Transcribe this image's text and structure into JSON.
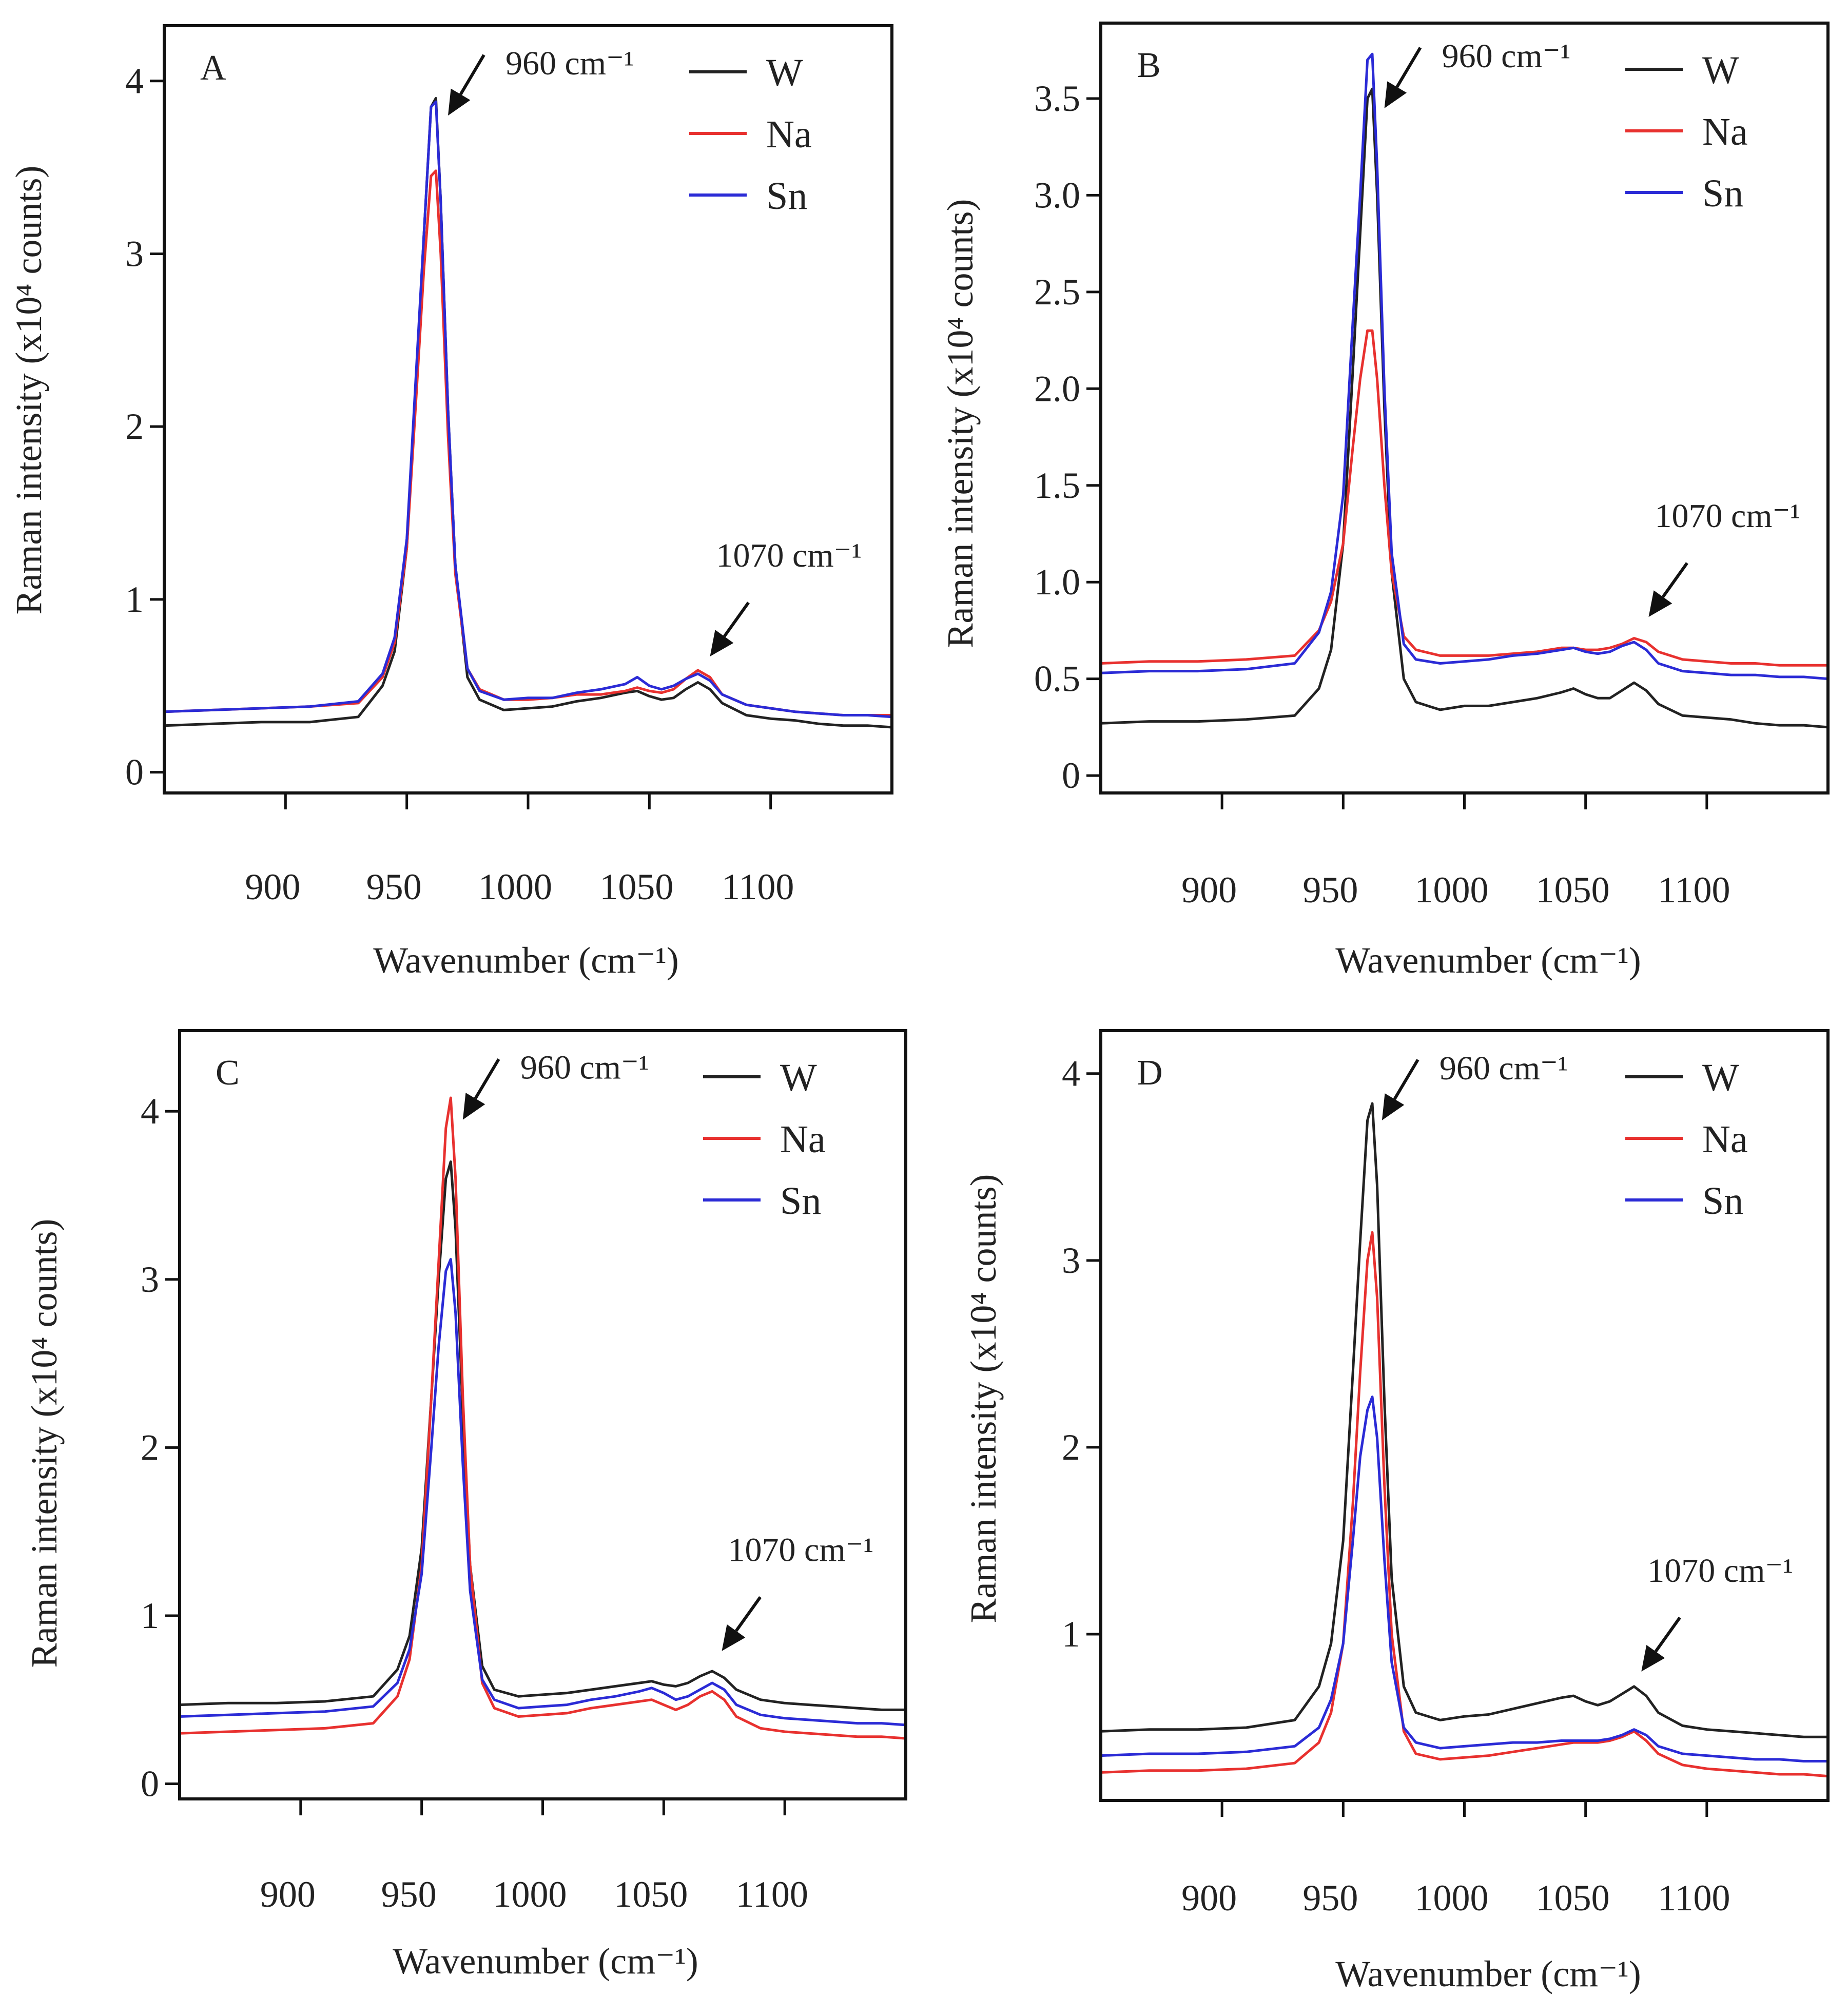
{
  "chart_data": [
    {
      "type": "line",
      "panel": "A",
      "xlabel": "Wavenumber (cm⁻¹)",
      "ylabel": "Raman intensity (x10⁴ counts)",
      "xlim": [
        850,
        1150
      ],
      "ylim": [
        -0.12,
        4.32
      ],
      "xticks": [
        900,
        950,
        1000,
        1050,
        1100
      ],
      "yticks": [
        0,
        1,
        2,
        3,
        4
      ],
      "ytick_labels": [
        "0",
        "1",
        "2",
        "3",
        "4"
      ],
      "grid": false,
      "legend": "top-right",
      "x": [
        850,
        870,
        890,
        910,
        930,
        940,
        945,
        950,
        954,
        957,
        960,
        962,
        964,
        967,
        970,
        975,
        980,
        990,
        1000,
        1010,
        1020,
        1030,
        1040,
        1045,
        1050,
        1055,
        1060,
        1065,
        1070,
        1075,
        1080,
        1090,
        1100,
        1110,
        1120,
        1130,
        1140,
        1150
      ],
      "series": [
        {
          "name": "W",
          "color": "#222222",
          "values": [
            0.27,
            0.28,
            0.29,
            0.29,
            0.32,
            0.5,
            0.7,
            1.3,
            2.3,
            3.1,
            3.85,
            3.9,
            3.3,
            2.1,
            1.2,
            0.55,
            0.42,
            0.36,
            0.37,
            0.38,
            0.41,
            0.43,
            0.46,
            0.47,
            0.44,
            0.42,
            0.43,
            0.48,
            0.52,
            0.48,
            0.4,
            0.33,
            0.31,
            0.3,
            0.28,
            0.27,
            0.27,
            0.26
          ]
        },
        {
          "name": "Na",
          "color": "#e8312f",
          "values": [
            0.35,
            0.36,
            0.37,
            0.38,
            0.4,
            0.55,
            0.75,
            1.3,
            2.2,
            2.9,
            3.45,
            3.48,
            3.0,
            1.95,
            1.15,
            0.6,
            0.48,
            0.42,
            0.42,
            0.43,
            0.45,
            0.45,
            0.47,
            0.49,
            0.47,
            0.46,
            0.48,
            0.54,
            0.59,
            0.55,
            0.45,
            0.39,
            0.37,
            0.35,
            0.34,
            0.33,
            0.33,
            0.33
          ]
        },
        {
          "name": "Sn",
          "color": "#2b2bd6",
          "values": [
            0.35,
            0.36,
            0.37,
            0.38,
            0.41,
            0.57,
            0.78,
            1.35,
            2.35,
            3.1,
            3.85,
            3.88,
            3.3,
            2.1,
            1.2,
            0.6,
            0.47,
            0.42,
            0.43,
            0.43,
            0.46,
            0.48,
            0.51,
            0.55,
            0.5,
            0.48,
            0.5,
            0.54,
            0.57,
            0.53,
            0.45,
            0.39,
            0.37,
            0.35,
            0.34,
            0.33,
            0.33,
            0.32
          ]
        }
      ],
      "annotations": [
        {
          "text": "960 cm⁻¹",
          "x": 967,
          "y": 3.8,
          "style": "right"
        },
        {
          "text": "1070 cm⁻¹",
          "x": 1075,
          "y": 0.67,
          "style": "above"
        }
      ]
    },
    {
      "type": "line",
      "panel": "B",
      "xlabel": "Wavenumber (cm⁻¹)",
      "ylabel": "Raman intensity (x10⁴ counts)",
      "xlim": [
        850,
        1150
      ],
      "ylim": [
        -0.09,
        3.89
      ],
      "xticks": [
        900,
        950,
        1000,
        1050,
        1100
      ],
      "yticks": [
        0,
        0.5,
        1.0,
        1.5,
        2.0,
        2.5,
        3.0,
        3.5
      ],
      "ytick_labels": [
        "0",
        "0.5",
        "1.0",
        "1.5",
        "2.0",
        "2.5",
        "3.0",
        "3.5"
      ],
      "grid": false,
      "legend": "top-right",
      "x": [
        850,
        870,
        890,
        910,
        930,
        940,
        945,
        950,
        954,
        957,
        960,
        962,
        964,
        967,
        970,
        975,
        980,
        990,
        1000,
        1010,
        1020,
        1030,
        1040,
        1045,
        1050,
        1055,
        1060,
        1065,
        1070,
        1075,
        1080,
        1090,
        1100,
        1110,
        1120,
        1130,
        1140,
        1150
      ],
      "series": [
        {
          "name": "W",
          "color": "#222222",
          "values": [
            0.27,
            0.28,
            0.28,
            0.29,
            0.31,
            0.45,
            0.65,
            1.2,
            2.1,
            2.8,
            3.5,
            3.55,
            3.0,
            1.9,
            1.05,
            0.5,
            0.38,
            0.34,
            0.36,
            0.36,
            0.38,
            0.4,
            0.43,
            0.45,
            0.42,
            0.4,
            0.4,
            0.44,
            0.48,
            0.44,
            0.37,
            0.31,
            0.3,
            0.29,
            0.27,
            0.26,
            0.26,
            0.25
          ]
        },
        {
          "name": "Na",
          "color": "#e8312f",
          "values": [
            0.58,
            0.59,
            0.59,
            0.6,
            0.62,
            0.75,
            0.9,
            1.2,
            1.7,
            2.05,
            2.3,
            2.3,
            2.05,
            1.5,
            1.05,
            0.72,
            0.65,
            0.62,
            0.62,
            0.62,
            0.63,
            0.64,
            0.66,
            0.66,
            0.65,
            0.65,
            0.66,
            0.68,
            0.71,
            0.69,
            0.64,
            0.6,
            0.59,
            0.58,
            0.58,
            0.57,
            0.57,
            0.57
          ]
        },
        {
          "name": "Sn",
          "color": "#2b2bd6",
          "values": [
            0.53,
            0.54,
            0.54,
            0.55,
            0.58,
            0.74,
            0.95,
            1.45,
            2.35,
            3.0,
            3.7,
            3.73,
            3.15,
            2.0,
            1.15,
            0.68,
            0.6,
            0.58,
            0.59,
            0.6,
            0.62,
            0.63,
            0.65,
            0.66,
            0.64,
            0.63,
            0.64,
            0.67,
            0.69,
            0.65,
            0.58,
            0.54,
            0.53,
            0.52,
            0.52,
            0.51,
            0.51,
            0.5
          ]
        }
      ],
      "annotations": [
        {
          "text": "960 cm⁻¹",
          "x": 967,
          "y": 3.45,
          "style": "right"
        },
        {
          "text": "1070 cm⁻¹",
          "x": 1076,
          "y": 0.82,
          "style": "above"
        }
      ]
    },
    {
      "type": "line",
      "panel": "C",
      "xlabel": "Wavenumber (cm⁻¹)",
      "ylabel": "Raman intensity (x10⁴ counts)",
      "xlim": [
        850,
        1150
      ],
      "ylim": [
        -0.09,
        4.48
      ],
      "xticks": [
        900,
        950,
        1000,
        1050,
        1100
      ],
      "yticks": [
        0,
        1,
        2,
        3,
        4
      ],
      "ytick_labels": [
        "0",
        "1",
        "2",
        "3",
        "4"
      ],
      "grid": false,
      "legend": "top-right",
      "x": [
        850,
        870,
        890,
        910,
        930,
        940,
        945,
        950,
        954,
        957,
        960,
        962,
        964,
        967,
        970,
        975,
        980,
        990,
        1000,
        1010,
        1020,
        1030,
        1040,
        1045,
        1050,
        1055,
        1060,
        1065,
        1070,
        1075,
        1080,
        1090,
        1100,
        1110,
        1120,
        1130,
        1140,
        1150
      ],
      "series": [
        {
          "name": "W",
          "color": "#222222",
          "values": [
            0.47,
            0.48,
            0.48,
            0.49,
            0.52,
            0.68,
            0.88,
            1.4,
            2.3,
            3.0,
            3.6,
            3.7,
            3.3,
            2.2,
            1.3,
            0.7,
            0.56,
            0.52,
            0.53,
            0.54,
            0.56,
            0.58,
            0.6,
            0.61,
            0.59,
            0.58,
            0.6,
            0.64,
            0.67,
            0.63,
            0.56,
            0.5,
            0.48,
            0.47,
            0.46,
            0.45,
            0.44,
            0.44
          ]
        },
        {
          "name": "Na",
          "color": "#e8312f",
          "values": [
            0.3,
            0.31,
            0.32,
            0.33,
            0.36,
            0.52,
            0.74,
            1.3,
            2.3,
            3.1,
            3.9,
            4.08,
            3.6,
            2.3,
            1.3,
            0.6,
            0.45,
            0.4,
            0.41,
            0.42,
            0.45,
            0.47,
            0.49,
            0.5,
            0.47,
            0.44,
            0.47,
            0.52,
            0.55,
            0.5,
            0.4,
            0.33,
            0.31,
            0.3,
            0.29,
            0.28,
            0.28,
            0.27
          ]
        },
        {
          "name": "Sn",
          "color": "#2b2bd6",
          "values": [
            0.4,
            0.41,
            0.42,
            0.43,
            0.46,
            0.6,
            0.8,
            1.25,
            2.0,
            2.6,
            3.05,
            3.12,
            2.8,
            1.9,
            1.15,
            0.62,
            0.5,
            0.45,
            0.46,
            0.47,
            0.5,
            0.52,
            0.55,
            0.57,
            0.54,
            0.5,
            0.52,
            0.56,
            0.6,
            0.56,
            0.47,
            0.41,
            0.39,
            0.38,
            0.37,
            0.36,
            0.36,
            0.35
          ]
        }
      ],
      "annotations": [
        {
          "text": "960 cm⁻¹",
          "x": 967,
          "y": 3.95,
          "style": "right"
        },
        {
          "text": "1070 cm⁻¹",
          "x": 1074,
          "y": 0.79,
          "style": "above"
        }
      ]
    },
    {
      "type": "line",
      "panel": "D",
      "xlabel": "Wavenumber (cm⁻¹)",
      "ylabel": "Raman intensity (x10⁴ counts)",
      "xlim": [
        850,
        1150
      ],
      "ylim": [
        0.11,
        4.23
      ],
      "xticks": [
        900,
        950,
        1000,
        1050,
        1100
      ],
      "yticks": [
        1,
        2,
        3,
        4
      ],
      "ytick_labels": [
        "1",
        "2",
        "3",
        "4"
      ],
      "grid": false,
      "legend": "top-right",
      "x": [
        850,
        870,
        890,
        910,
        930,
        940,
        945,
        950,
        954,
        957,
        960,
        962,
        964,
        967,
        970,
        975,
        980,
        990,
        1000,
        1010,
        1020,
        1030,
        1040,
        1045,
        1050,
        1055,
        1060,
        1065,
        1070,
        1075,
        1080,
        1090,
        1100,
        1110,
        1120,
        1130,
        1140,
        1150
      ],
      "series": [
        {
          "name": "W",
          "color": "#222222",
          "values": [
            0.48,
            0.49,
            0.49,
            0.5,
            0.54,
            0.72,
            0.95,
            1.5,
            2.4,
            3.1,
            3.75,
            3.84,
            3.4,
            2.25,
            1.3,
            0.72,
            0.58,
            0.54,
            0.56,
            0.57,
            0.6,
            0.63,
            0.66,
            0.67,
            0.64,
            0.62,
            0.64,
            0.68,
            0.72,
            0.67,
            0.58,
            0.51,
            0.49,
            0.48,
            0.47,
            0.46,
            0.45,
            0.45
          ]
        },
        {
          "name": "Na",
          "color": "#e8312f",
          "values": [
            0.26,
            0.27,
            0.27,
            0.28,
            0.31,
            0.42,
            0.58,
            0.95,
            1.7,
            2.4,
            3.0,
            3.15,
            2.8,
            1.8,
            1.0,
            0.48,
            0.36,
            0.33,
            0.34,
            0.35,
            0.37,
            0.39,
            0.41,
            0.42,
            0.42,
            0.42,
            0.43,
            0.45,
            0.48,
            0.43,
            0.36,
            0.3,
            0.28,
            0.27,
            0.26,
            0.25,
            0.25,
            0.24
          ]
        },
        {
          "name": "Sn",
          "color": "#2b2bd6",
          "values": [
            0.35,
            0.36,
            0.36,
            0.37,
            0.4,
            0.5,
            0.65,
            0.95,
            1.5,
            1.95,
            2.2,
            2.27,
            2.05,
            1.4,
            0.85,
            0.5,
            0.42,
            0.39,
            0.4,
            0.41,
            0.42,
            0.42,
            0.43,
            0.43,
            0.43,
            0.43,
            0.44,
            0.46,
            0.49,
            0.46,
            0.4,
            0.36,
            0.35,
            0.34,
            0.33,
            0.33,
            0.32,
            0.32
          ]
        }
      ],
      "annotations": [
        {
          "text": "960 cm⁻¹",
          "x": 966,
          "y": 3.75,
          "style": "right"
        },
        {
          "text": "1070 cm⁻¹",
          "x": 1073,
          "y": 0.8,
          "style": "above"
        }
      ]
    }
  ]
}
